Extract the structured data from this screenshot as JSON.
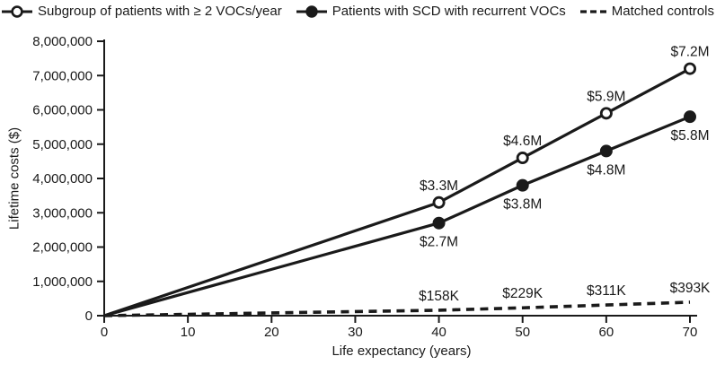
{
  "figure": {
    "background": "#ffffff",
    "ink_color": "#1a1a1a"
  },
  "chart_data": {
    "type": "line",
    "title": "",
    "xlabel": "Life expectancy (years)",
    "ylabel": "Lifetime costs ($)",
    "xlim": [
      0,
      70
    ],
    "ylim": [
      0,
      8000000
    ],
    "grid": false,
    "legend_position": "top",
    "x_ticks": {
      "values": [
        0,
        10,
        20,
        30,
        40,
        50,
        60,
        70
      ],
      "labels": [
        "0",
        "10",
        "20",
        "30",
        "40",
        "50",
        "60",
        "70"
      ]
    },
    "y_ticks": {
      "values": [
        0,
        1000000,
        2000000,
        3000000,
        4000000,
        5000000,
        6000000,
        7000000,
        8000000
      ],
      "labels": [
        "0",
        "1,000,000",
        "2,000,000",
        "3,000,000",
        "4,000,000",
        "5,000,000",
        "6,000,000",
        "7,000,000",
        "8,000,000"
      ]
    },
    "series": [
      {
        "name": "Subgroup of patients with ≥ 2 VOCs/year",
        "marker": "open-circle",
        "line_style": "solid",
        "x": [
          0,
          40,
          50,
          60,
          70
        ],
        "y": [
          0,
          3300000,
          4600000,
          5900000,
          7200000
        ],
        "point_labels": [
          "",
          "$3.3M",
          "$4.6M",
          "$5.9M",
          "$7.2M"
        ],
        "label_position": "above"
      },
      {
        "name": "Patients with SCD with recurrent VOCs",
        "marker": "filled-circle",
        "line_style": "solid",
        "x": [
          0,
          40,
          50,
          60,
          70
        ],
        "y": [
          0,
          2700000,
          3800000,
          4800000,
          5800000
        ],
        "point_labels": [
          "",
          "$2.7M",
          "$3.8M",
          "$4.8M",
          "$5.8M"
        ],
        "label_position": "below"
      },
      {
        "name": "Matched controls",
        "marker": "none",
        "line_style": "dashed",
        "x": [
          0,
          40,
          50,
          60,
          70
        ],
        "y": [
          0,
          158000,
          229000,
          311000,
          393000
        ],
        "point_labels": [
          "",
          "$158K",
          "$229K",
          "$311K",
          "$393K"
        ],
        "label_position": "above"
      }
    ]
  }
}
